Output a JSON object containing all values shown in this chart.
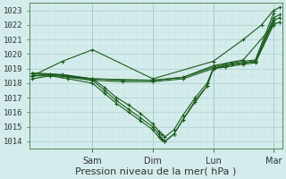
{
  "xlabel": "Pression niveau de la mer( hPa )",
  "ylim": [
    1013.5,
    1023.5
  ],
  "xlim": [
    -0.05,
    4.15
  ],
  "yticks": [
    1014,
    1015,
    1016,
    1017,
    1018,
    1019,
    1020,
    1021,
    1022,
    1023
  ],
  "bg_color": "#d4ecec",
  "line_color": "#1a5c1a",
  "grid_color": "#aacccc",
  "grid_minor_color": "#c8e2e2",
  "xlabel_fontsize": 8,
  "ytick_fontsize": 6.5,
  "xtick_fontsize": 7,
  "day_labels": [
    "Sam",
    "Dim",
    "Lun",
    "Mar"
  ],
  "day_positions": [
    1.0,
    2.0,
    3.0,
    4.0
  ],
  "lines": [
    [
      0.0,
      1018.5,
      0.3,
      1018.6,
      0.6,
      1018.4,
      1.0,
      1018.2,
      1.2,
      1017.5,
      1.4,
      1016.8,
      1.6,
      1016.2,
      1.8,
      1015.6,
      2.0,
      1015.0,
      2.1,
      1014.5,
      2.15,
      1014.2,
      2.2,
      1014.0,
      2.35,
      1014.5,
      2.5,
      1015.5,
      2.7,
      1016.8,
      2.9,
      1017.8,
      3.0,
      1019.0,
      3.2,
      1019.2,
      3.5,
      1019.4,
      3.7,
      1019.5,
      4.0,
      1022.3,
      4.1,
      1022.5
    ],
    [
      0.0,
      1018.5,
      0.3,
      1018.6,
      0.6,
      1018.5,
      1.0,
      1018.3,
      1.2,
      1017.7,
      1.4,
      1017.0,
      1.6,
      1016.5,
      1.8,
      1015.9,
      2.0,
      1015.2,
      2.1,
      1014.7,
      2.15,
      1014.5,
      2.2,
      1014.3,
      2.35,
      1014.8,
      2.5,
      1015.8,
      2.7,
      1017.0,
      2.9,
      1018.0,
      3.0,
      1019.0,
      3.2,
      1019.1,
      3.5,
      1019.3,
      3.7,
      1019.4,
      4.0,
      1022.0,
      4.1,
      1022.2
    ],
    [
      0.0,
      1018.3,
      0.3,
      1018.5,
      0.6,
      1018.3,
      1.0,
      1018.0,
      1.2,
      1017.3,
      1.4,
      1016.6,
      1.6,
      1016.0,
      1.8,
      1015.4,
      2.0,
      1014.8,
      2.1,
      1014.3,
      2.15,
      1014.1,
      2.2,
      1014.0,
      2.35,
      1014.5,
      2.5,
      1015.5,
      2.7,
      1016.7,
      2.9,
      1017.8,
      3.0,
      1019.0,
      3.2,
      1019.2,
      3.5,
      1019.4,
      3.7,
      1019.5,
      4.0,
      1022.5,
      4.1,
      1022.7
    ],
    [
      0.0,
      1018.7,
      0.5,
      1018.5,
      1.0,
      1018.2,
      1.5,
      1018.1,
      2.0,
      1018.1,
      2.5,
      1018.3,
      3.0,
      1019.0,
      3.3,
      1019.3,
      3.7,
      1019.5,
      4.0,
      1022.2
    ],
    [
      0.0,
      1018.7,
      0.5,
      1018.6,
      1.0,
      1018.3,
      1.5,
      1018.2,
      2.0,
      1018.2,
      2.5,
      1018.4,
      3.0,
      1019.1,
      3.3,
      1019.4,
      3.7,
      1019.6,
      4.0,
      1022.8
    ],
    [
      0.0,
      1018.5,
      0.5,
      1019.5,
      1.0,
      1020.3,
      2.0,
      1018.3,
      3.0,
      1019.5,
      3.5,
      1021.0,
      3.8,
      1022.0,
      4.0,
      1023.0,
      4.1,
      1023.2
    ],
    [
      0.0,
      1018.5,
      0.5,
      1018.5,
      1.0,
      1018.3,
      2.0,
      1018.2,
      2.5,
      1018.4,
      3.0,
      1019.2,
      3.5,
      1019.6,
      4.0,
      1022.0
    ]
  ]
}
